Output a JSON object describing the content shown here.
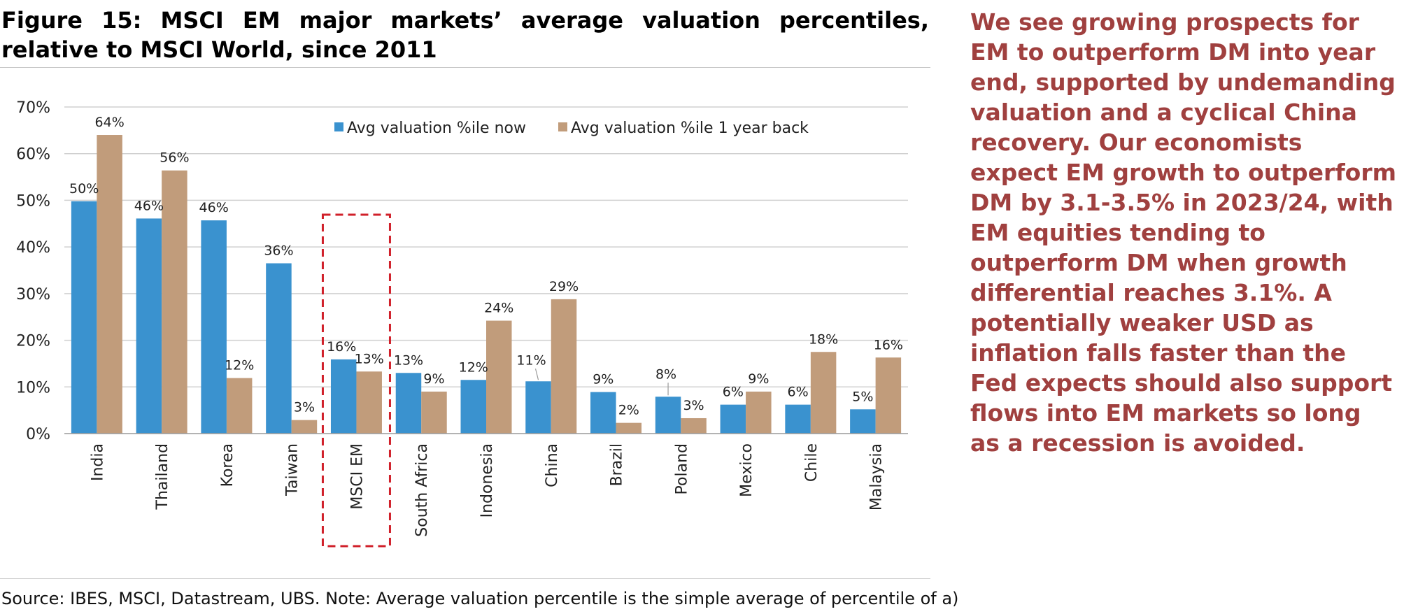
{
  "figure": {
    "title": "Figure 15: MSCI EM major markets’ average valuation percentiles, relative to MSCI World, since 2011",
    "source_note": "Source: IBES, MSCI, Datastream, UBS. Note: Average valuation percentile is the simple average of percentile of a)"
  },
  "commentary": "We see growing prospects for EM to outperform DM into year end, supported by undemanding valuation and a cyclical China recovery. Our economists expect EM growth to outperform DM by 3.1-3.5% in 2023/24, with EM equities tending to outperform DM when growth differential reaches 3.1%. A potentially weaker USD as inflation falls faster than the Fed expects should also support flows into EM markets so long as a recession is avoided.",
  "chart_data": {
    "type": "bar",
    "title": "",
    "xlabel": "",
    "ylabel": "",
    "ylim": [
      0,
      70
    ],
    "yticks": [
      "0%",
      "10%",
      "20%",
      "30%",
      "40%",
      "50%",
      "60%",
      "70%"
    ],
    "grid": true,
    "legend_position": "top",
    "highlighted_category": "MSCI EM",
    "categories": [
      "India",
      "Thailand",
      "Korea",
      "Taiwan",
      "MSCI EM",
      "South Africa",
      "Indonesia",
      "China",
      "Brazil",
      "Poland",
      "Mexico",
      "Chile",
      "Malaysia"
    ],
    "series": [
      {
        "name": "Avg valuation %ile now",
        "color": "#3a92cf",
        "values": [
          49.8,
          46.1,
          45.7,
          36.5,
          15.9,
          13.0,
          11.5,
          11.2,
          8.9,
          7.9,
          6.2,
          6.2,
          5.2
        ],
        "labels": [
          "50%",
          "46%",
          "46%",
          "36%",
          "16%",
          "13%",
          "12%",
          "11%",
          "9%",
          "8%",
          "6%",
          "6%",
          "5%"
        ]
      },
      {
        "name": "Avg valuation %ile 1 year back",
        "color": "#c19c7b",
        "values": [
          64.0,
          56.4,
          11.9,
          2.9,
          13.3,
          9.0,
          24.2,
          28.8,
          2.3,
          3.3,
          9.0,
          17.5,
          16.3
        ],
        "labels": [
          "64%",
          "56%",
          "12%",
          "3%",
          "13%",
          "9%",
          "24%",
          "29%",
          "2%",
          "3%",
          "9%",
          "18%",
          "16%"
        ]
      }
    ]
  }
}
